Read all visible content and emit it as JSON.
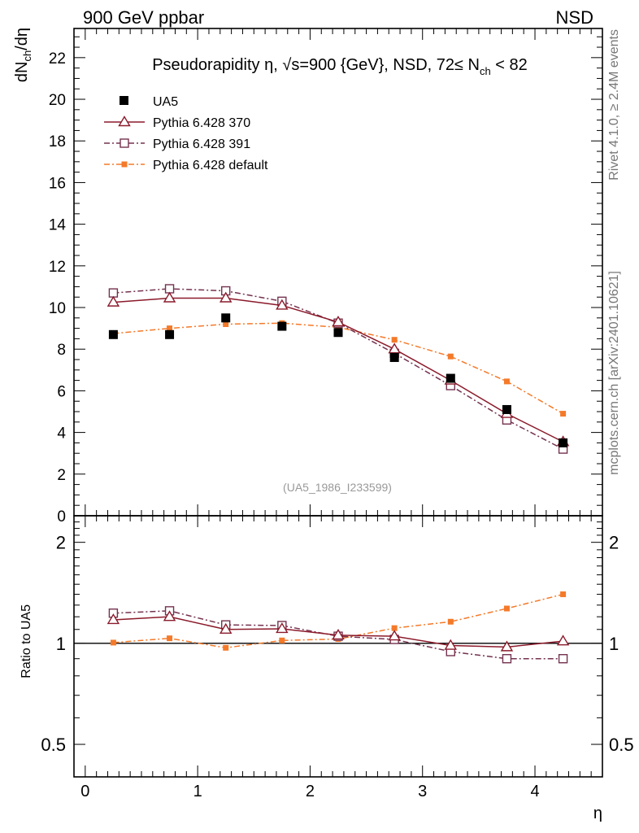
{
  "header": {
    "left_label": "900 GeV ppbar",
    "right_label": "NSD"
  },
  "side_labels": {
    "upper": "Rivet 4.1.0, ≥ 2.4M events",
    "lower": "mcplots.cern.ch [arXiv:2401.10621]"
  },
  "chart_data": [
    {
      "type": "line",
      "panel": "main",
      "title": "Pseudorapidity η, √s=900 {GeV}, NSD, 72≤ N_ch < 82",
      "title_parts": {
        "prefix": "Pseudorapidity η, ",
        "sqrt": "√",
        "energy": "s=900 {GeV}, NSD, 72≤ N",
        "sub": "ch",
        "suffix": " < 82"
      },
      "ylabel": "dN_ch/dη",
      "ylabel_parts": {
        "a": "dN",
        "sub": "ch",
        "b": "/dη"
      },
      "xlim": [
        -0.1,
        4.6
      ],
      "ylim": [
        0,
        23.4
      ],
      "y_ticks": [
        0,
        2,
        4,
        6,
        8,
        10,
        12,
        14,
        16,
        18,
        20,
        22
      ],
      "watermark": "(UA5_1986_I233599)",
      "x": [
        0.25,
        0.75,
        1.25,
        1.75,
        2.25,
        2.75,
        3.25,
        3.75,
        4.25
      ],
      "series": [
        {
          "name": "UA5",
          "color": "#000000",
          "marker": "filled-square",
          "line": "none",
          "values": [
            8.7,
            8.7,
            9.5,
            9.1,
            8.8,
            7.6,
            6.6,
            5.1,
            3.5
          ]
        },
        {
          "name": "Pythia 6.428 370",
          "color": "#8b1a2b",
          "marker": "open-triangle",
          "line": "solid",
          "values": [
            10.25,
            10.45,
            10.45,
            10.1,
            9.3,
            8.0,
            6.5,
            4.9,
            3.55
          ]
        },
        {
          "name": "Pythia 6.428 391",
          "color": "#74324f",
          "marker": "open-square",
          "line": "dashdot",
          "values": [
            10.7,
            10.9,
            10.8,
            10.3,
            9.25,
            7.8,
            6.25,
            4.6,
            3.2
          ]
        },
        {
          "name": "Pythia 6.428 default",
          "color": "#f47a2a",
          "marker": "small-filled-square",
          "line": "dashdot",
          "values": [
            8.75,
            9.0,
            9.2,
            9.25,
            9.05,
            8.45,
            7.65,
            6.45,
            4.9
          ]
        }
      ]
    },
    {
      "type": "line",
      "panel": "ratio",
      "ylabel": "Ratio to UA5",
      "xlabel": "η",
      "xlim": [
        -0.1,
        4.6
      ],
      "ylim": [
        0.4,
        2.4
      ],
      "y_scale": "log",
      "y_ticks": [
        0.5,
        1,
        2
      ],
      "y_tick_labels": [
        "0.5",
        "1",
        "2"
      ],
      "x_ticks": [
        0,
        1,
        2,
        3,
        4
      ],
      "x_tick_labels": [
        "0",
        "1",
        "2",
        "3",
        "4"
      ],
      "reference_line": 1,
      "x": [
        0.25,
        0.75,
        1.25,
        1.75,
        2.25,
        2.75,
        3.25,
        3.75,
        4.25
      ],
      "series": [
        {
          "name": "Pythia 6.428 370",
          "color": "#8b1a2b",
          "marker": "open-triangle",
          "line": "solid",
          "values": [
            1.175,
            1.2,
            1.1,
            1.105,
            1.057,
            1.05,
            0.985,
            0.975,
            1.015
          ]
        },
        {
          "name": "Pythia 6.428 391",
          "color": "#74324f",
          "marker": "open-square",
          "line": "dashdot",
          "values": [
            1.23,
            1.25,
            1.135,
            1.13,
            1.05,
            1.027,
            0.945,
            0.9,
            0.9
          ]
        },
        {
          "name": "Pythia 6.428 default",
          "color": "#f47a2a",
          "marker": "small-filled-square",
          "line": "dashdot",
          "values": [
            1.005,
            1.035,
            0.97,
            1.02,
            1.03,
            1.11,
            1.16,
            1.27,
            1.4
          ]
        }
      ]
    }
  ]
}
